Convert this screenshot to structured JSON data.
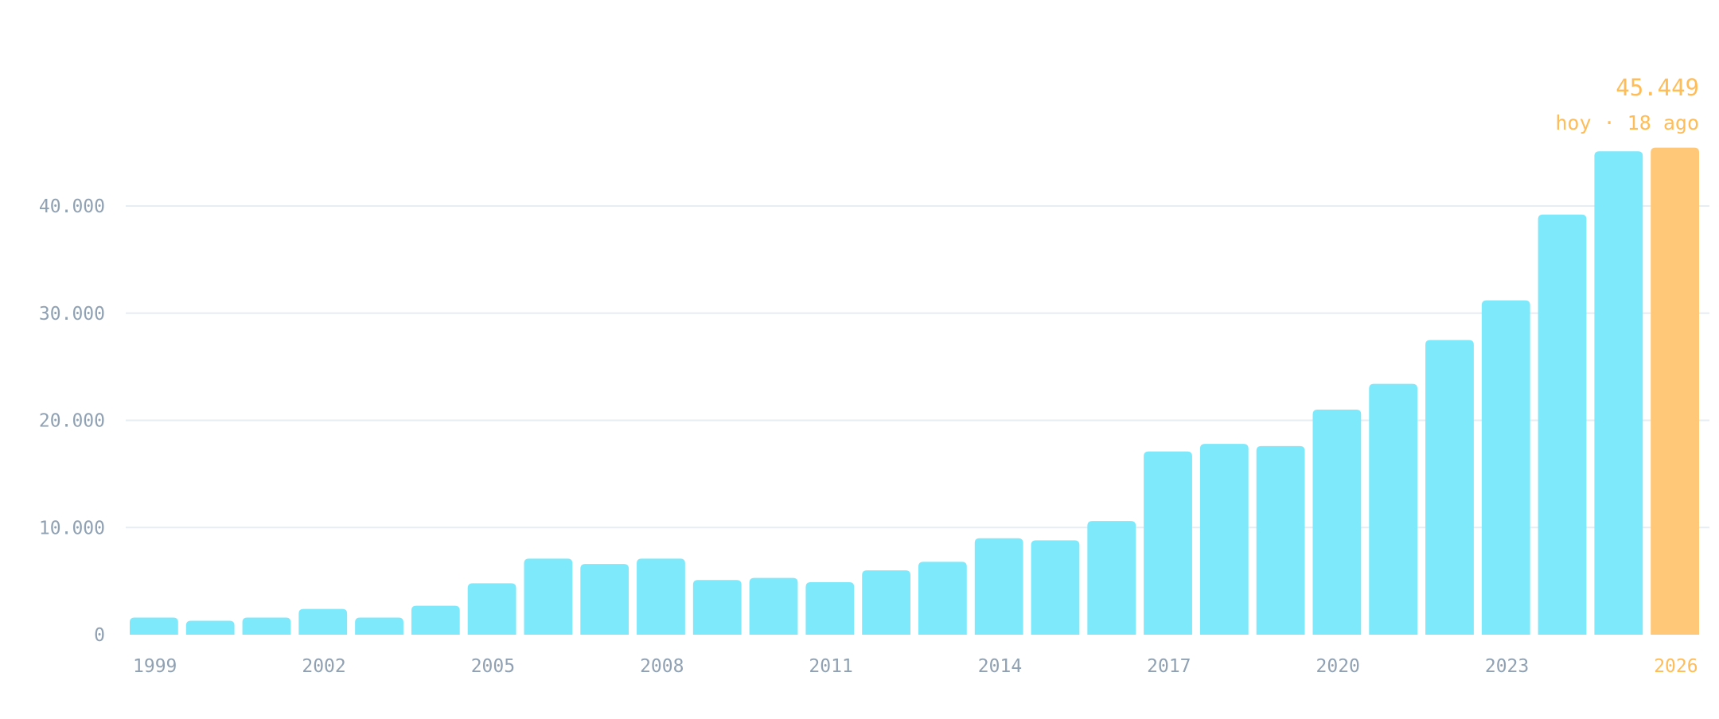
{
  "chart_data": {
    "type": "bar",
    "title": "",
    "xlabel": "",
    "ylabel": "",
    "ylim": [
      0,
      45000
    ],
    "grid": true,
    "y_ticks": [
      {
        "value": 0,
        "label": "0"
      },
      {
        "value": 10000,
        "label": "10.000"
      },
      {
        "value": 20000,
        "label": "20.000"
      },
      {
        "value": 30000,
        "label": "30.000"
      },
      {
        "value": 40000,
        "label": "40.000"
      }
    ],
    "categories": [
      "1999",
      "2000",
      "2001",
      "2002",
      "2003",
      "2004",
      "2005",
      "2006",
      "2007",
      "2008",
      "2009",
      "2010",
      "2011",
      "2012",
      "2013",
      "2014",
      "2015",
      "2016",
      "2017",
      "2018",
      "2019",
      "2020",
      "2021",
      "2022",
      "2023",
      "2024",
      "2025",
      "2026"
    ],
    "x_tick_labels": [
      "1999",
      "2002",
      "2005",
      "2008",
      "2011",
      "2014",
      "2017",
      "2020",
      "2023",
      "2026"
    ],
    "values": [
      1600,
      1300,
      1600,
      2400,
      1600,
      2700,
      4800,
      7100,
      6600,
      7100,
      5100,
      5300,
      4900,
      6000,
      6800,
      9000,
      8800,
      10600,
      17100,
      17800,
      17600,
      21000,
      23400,
      27500,
      31200,
      39200,
      45100,
      45449
    ],
    "highlight": {
      "category": "2026",
      "value_label": "45.449",
      "date_label": "hoy · 18 ago"
    },
    "colors": {
      "bar": "#7de9fb",
      "highlight": "#ffc878",
      "grid": "#e6edf3",
      "axis_text": "#8fa1b3",
      "highlight_text": "#ffbd59"
    }
  }
}
